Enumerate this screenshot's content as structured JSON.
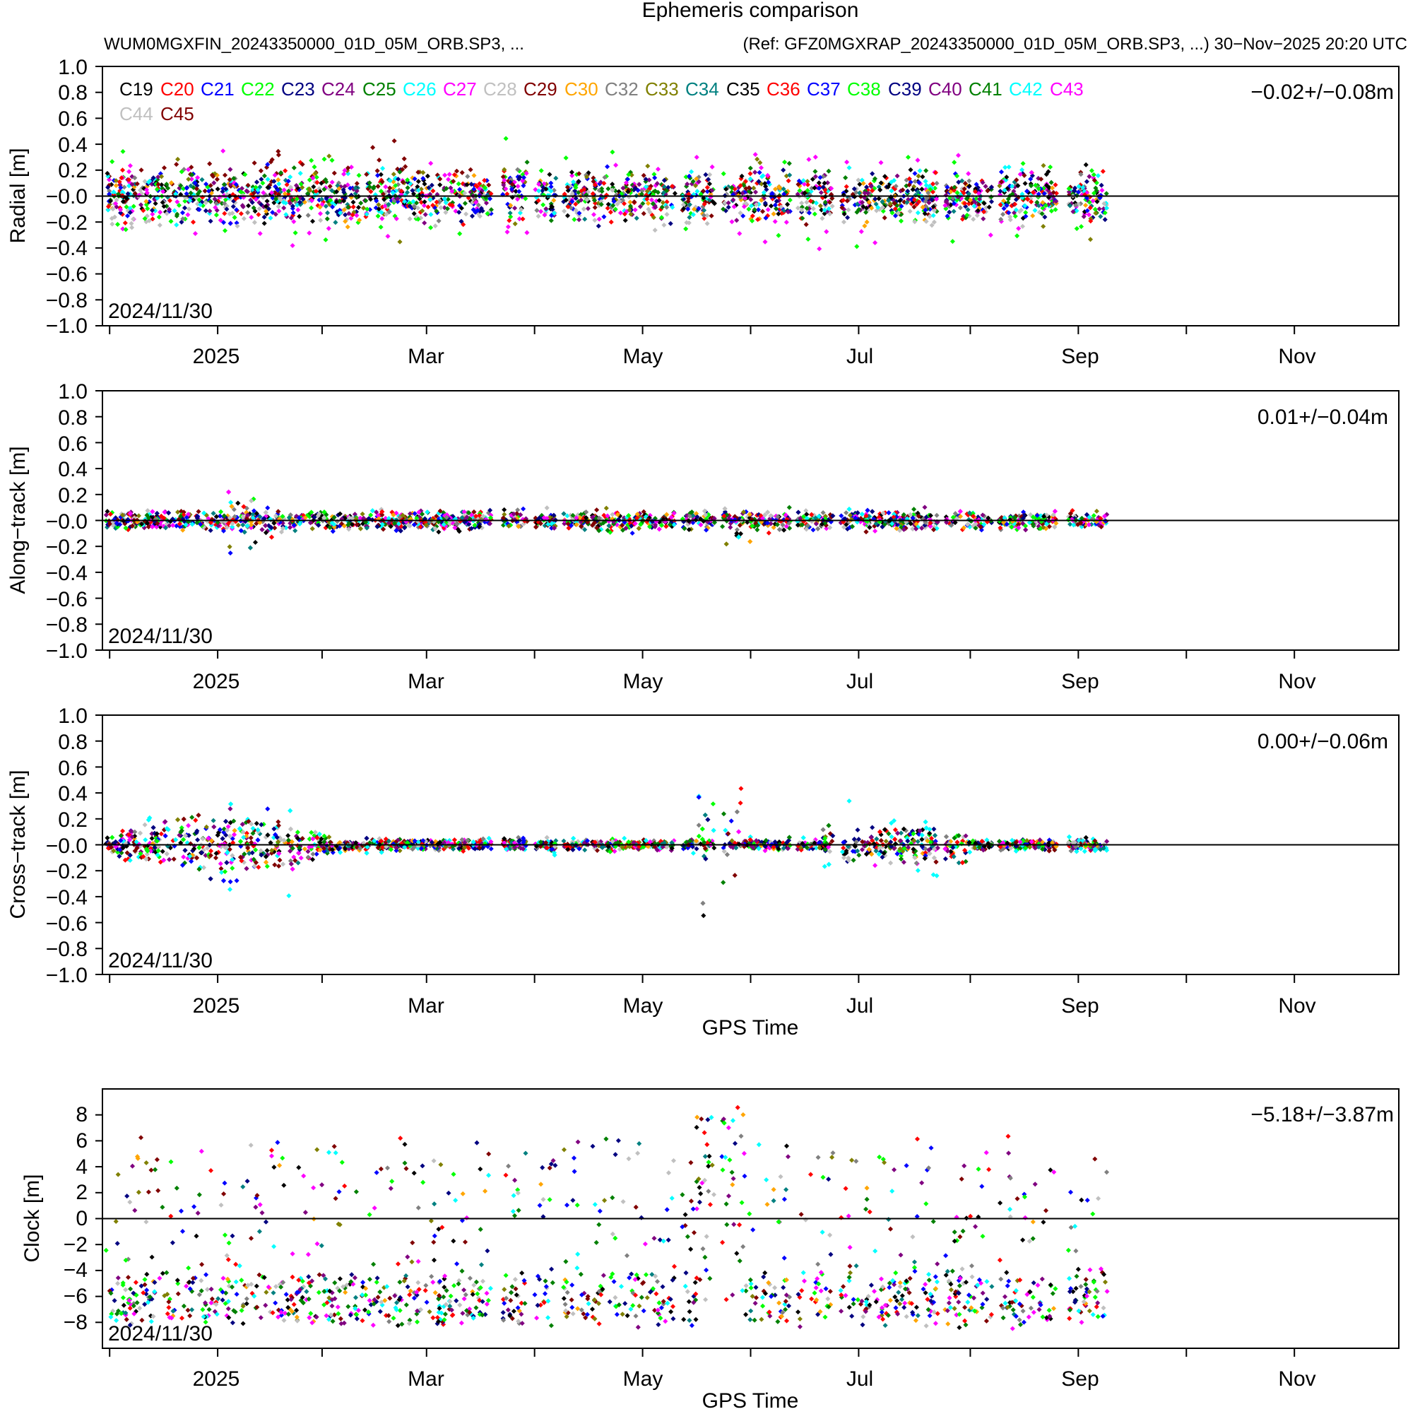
{
  "title": "Ephemeris comparison",
  "subtitle_left": "WUM0MGXFIN_20243350000_01D_05M_ORB.SP3, ...",
  "subtitle_right": "(Ref: GFZ0MGXRAP_20243350000_01D_05M_ORB.SP3, ...) 30−Nov−2025 20:20 UTC",
  "legend": [
    {
      "label": "C19",
      "color": "#000000"
    },
    {
      "label": "C20",
      "color": "#ff0000"
    },
    {
      "label": "C21",
      "color": "#0000ff"
    },
    {
      "label": "C22",
      "color": "#00ff00"
    },
    {
      "label": "C23",
      "color": "#000080"
    },
    {
      "label": "C24",
      "color": "#800080"
    },
    {
      "label": "C25",
      "color": "#008000"
    },
    {
      "label": "C26",
      "color": "#00ffff"
    },
    {
      "label": "C27",
      "color": "#ff00ff"
    },
    {
      "label": "C28",
      "color": "#c0c0c0"
    },
    {
      "label": "C29",
      "color": "#800000"
    },
    {
      "label": "C30",
      "color": "#ffa500"
    },
    {
      "label": "C32",
      "color": "#808080"
    },
    {
      "label": "C33",
      "color": "#808000"
    },
    {
      "label": "C34",
      "color": "#008080"
    },
    {
      "label": "C35",
      "color": "#000000"
    },
    {
      "label": "C36",
      "color": "#ff0000"
    },
    {
      "label": "C37",
      "color": "#0000ff"
    },
    {
      "label": "C38",
      "color": "#00ff00"
    },
    {
      "label": "C39",
      "color": "#000080"
    },
    {
      "label": "C40",
      "color": "#800080"
    },
    {
      "label": "C41",
      "color": "#008000"
    },
    {
      "label": "C42",
      "color": "#00ffff"
    },
    {
      "label": "C43",
      "color": "#ff00ff"
    },
    {
      "label": "C44",
      "color": "#c0c0c0"
    },
    {
      "label": "C45",
      "color": "#800000"
    }
  ],
  "chart_data": [
    {
      "type": "scatter",
      "id": "radial",
      "ylabel": "Radial [m]",
      "ylim": [
        -1.0,
        1.0
      ],
      "yticks": [
        "1.0",
        "0.8",
        "0.6",
        "0.4",
        "0.2",
        "−0.0",
        "−0.2",
        "−0.4",
        "−0.6",
        "−0.8",
        "−1.0"
      ],
      "ytick_values": [
        1.0,
        0.8,
        0.6,
        0.4,
        0.2,
        0.0,
        -0.2,
        -0.4,
        -0.6,
        -0.8,
        -1.0
      ],
      "xlabel": "",
      "xticks": [
        "2025",
        "Mar",
        "May",
        "Jul",
        "Sep",
        "Nov"
      ],
      "xtick_days": [
        32,
        90,
        150,
        210,
        271,
        331
      ],
      "xlim_days": [
        0,
        360
      ],
      "date_label": "2024/11/30",
      "stat": "−0.02+/−0.08m",
      "show_legend": true,
      "data_end_day": 279,
      "spread": 0.22
    },
    {
      "type": "scatter",
      "id": "along",
      "ylabel": "Along−track [m]",
      "ylim": [
        -1.0,
        1.0
      ],
      "yticks": [
        "1.0",
        "0.8",
        "0.6",
        "0.4",
        "0.2",
        "−0.0",
        "−0.2",
        "−0.4",
        "−0.6",
        "−0.8",
        "−1.0"
      ],
      "ytick_values": [
        1.0,
        0.8,
        0.6,
        0.4,
        0.2,
        0.0,
        -0.2,
        -0.4,
        -0.6,
        -0.8,
        -1.0
      ],
      "xlabel": "",
      "xticks": [
        "2025",
        "Mar",
        "May",
        "Jul",
        "Sep",
        "Nov"
      ],
      "xtick_days": [
        32,
        90,
        150,
        210,
        271,
        331
      ],
      "xlim_days": [
        0,
        360
      ],
      "date_label": "2024/11/30",
      "stat": "0.01+/−0.04m",
      "show_legend": false,
      "data_end_day": 279,
      "spread": 0.07
    },
    {
      "type": "scatter",
      "id": "cross",
      "ylabel": "Cross−track [m]",
      "ylim": [
        -1.0,
        1.0
      ],
      "yticks": [
        "1.0",
        "0.8",
        "0.6",
        "0.4",
        "0.2",
        "−0.0",
        "−0.2",
        "−0.4",
        "−0.6",
        "−0.8",
        "−1.0"
      ],
      "ytick_values": [
        1.0,
        0.8,
        0.6,
        0.4,
        0.2,
        0.0,
        -0.2,
        -0.4,
        -0.6,
        -0.8,
        -1.0
      ],
      "xlabel": "GPS Time",
      "xticks": [
        "2025",
        "Mar",
        "May",
        "Jul",
        "Sep",
        "Nov"
      ],
      "xtick_days": [
        32,
        90,
        150,
        210,
        271,
        331
      ],
      "xlim_days": [
        0,
        360
      ],
      "date_label": "2024/11/30",
      "stat": "0.00+/−0.06m",
      "show_legend": false,
      "data_end_day": 279,
      "spread": 0.12
    },
    {
      "type": "scatter",
      "id": "clock",
      "ylabel": "Clock [m]",
      "ylim": [
        -10.0,
        10.0
      ],
      "yticks": [
        "8",
        "6",
        "4",
        "2",
        "0",
        "−2",
        "−4",
        "−6",
        "−8"
      ],
      "ytick_values": [
        8,
        6,
        4,
        2,
        0,
        -2,
        -4,
        -6,
        -8
      ],
      "xlabel": "GPS Time",
      "xticks": [
        "2025",
        "Mar",
        "May",
        "Jul",
        "Sep",
        "Nov"
      ],
      "xtick_days": [
        32,
        90,
        150,
        210,
        271,
        331
      ],
      "xlim_days": [
        0,
        360
      ],
      "date_label": "2024/11/30",
      "stat": "−5.18+/−3.87m",
      "show_legend": false,
      "data_end_day": 279,
      "spread": 4.0
    }
  ]
}
